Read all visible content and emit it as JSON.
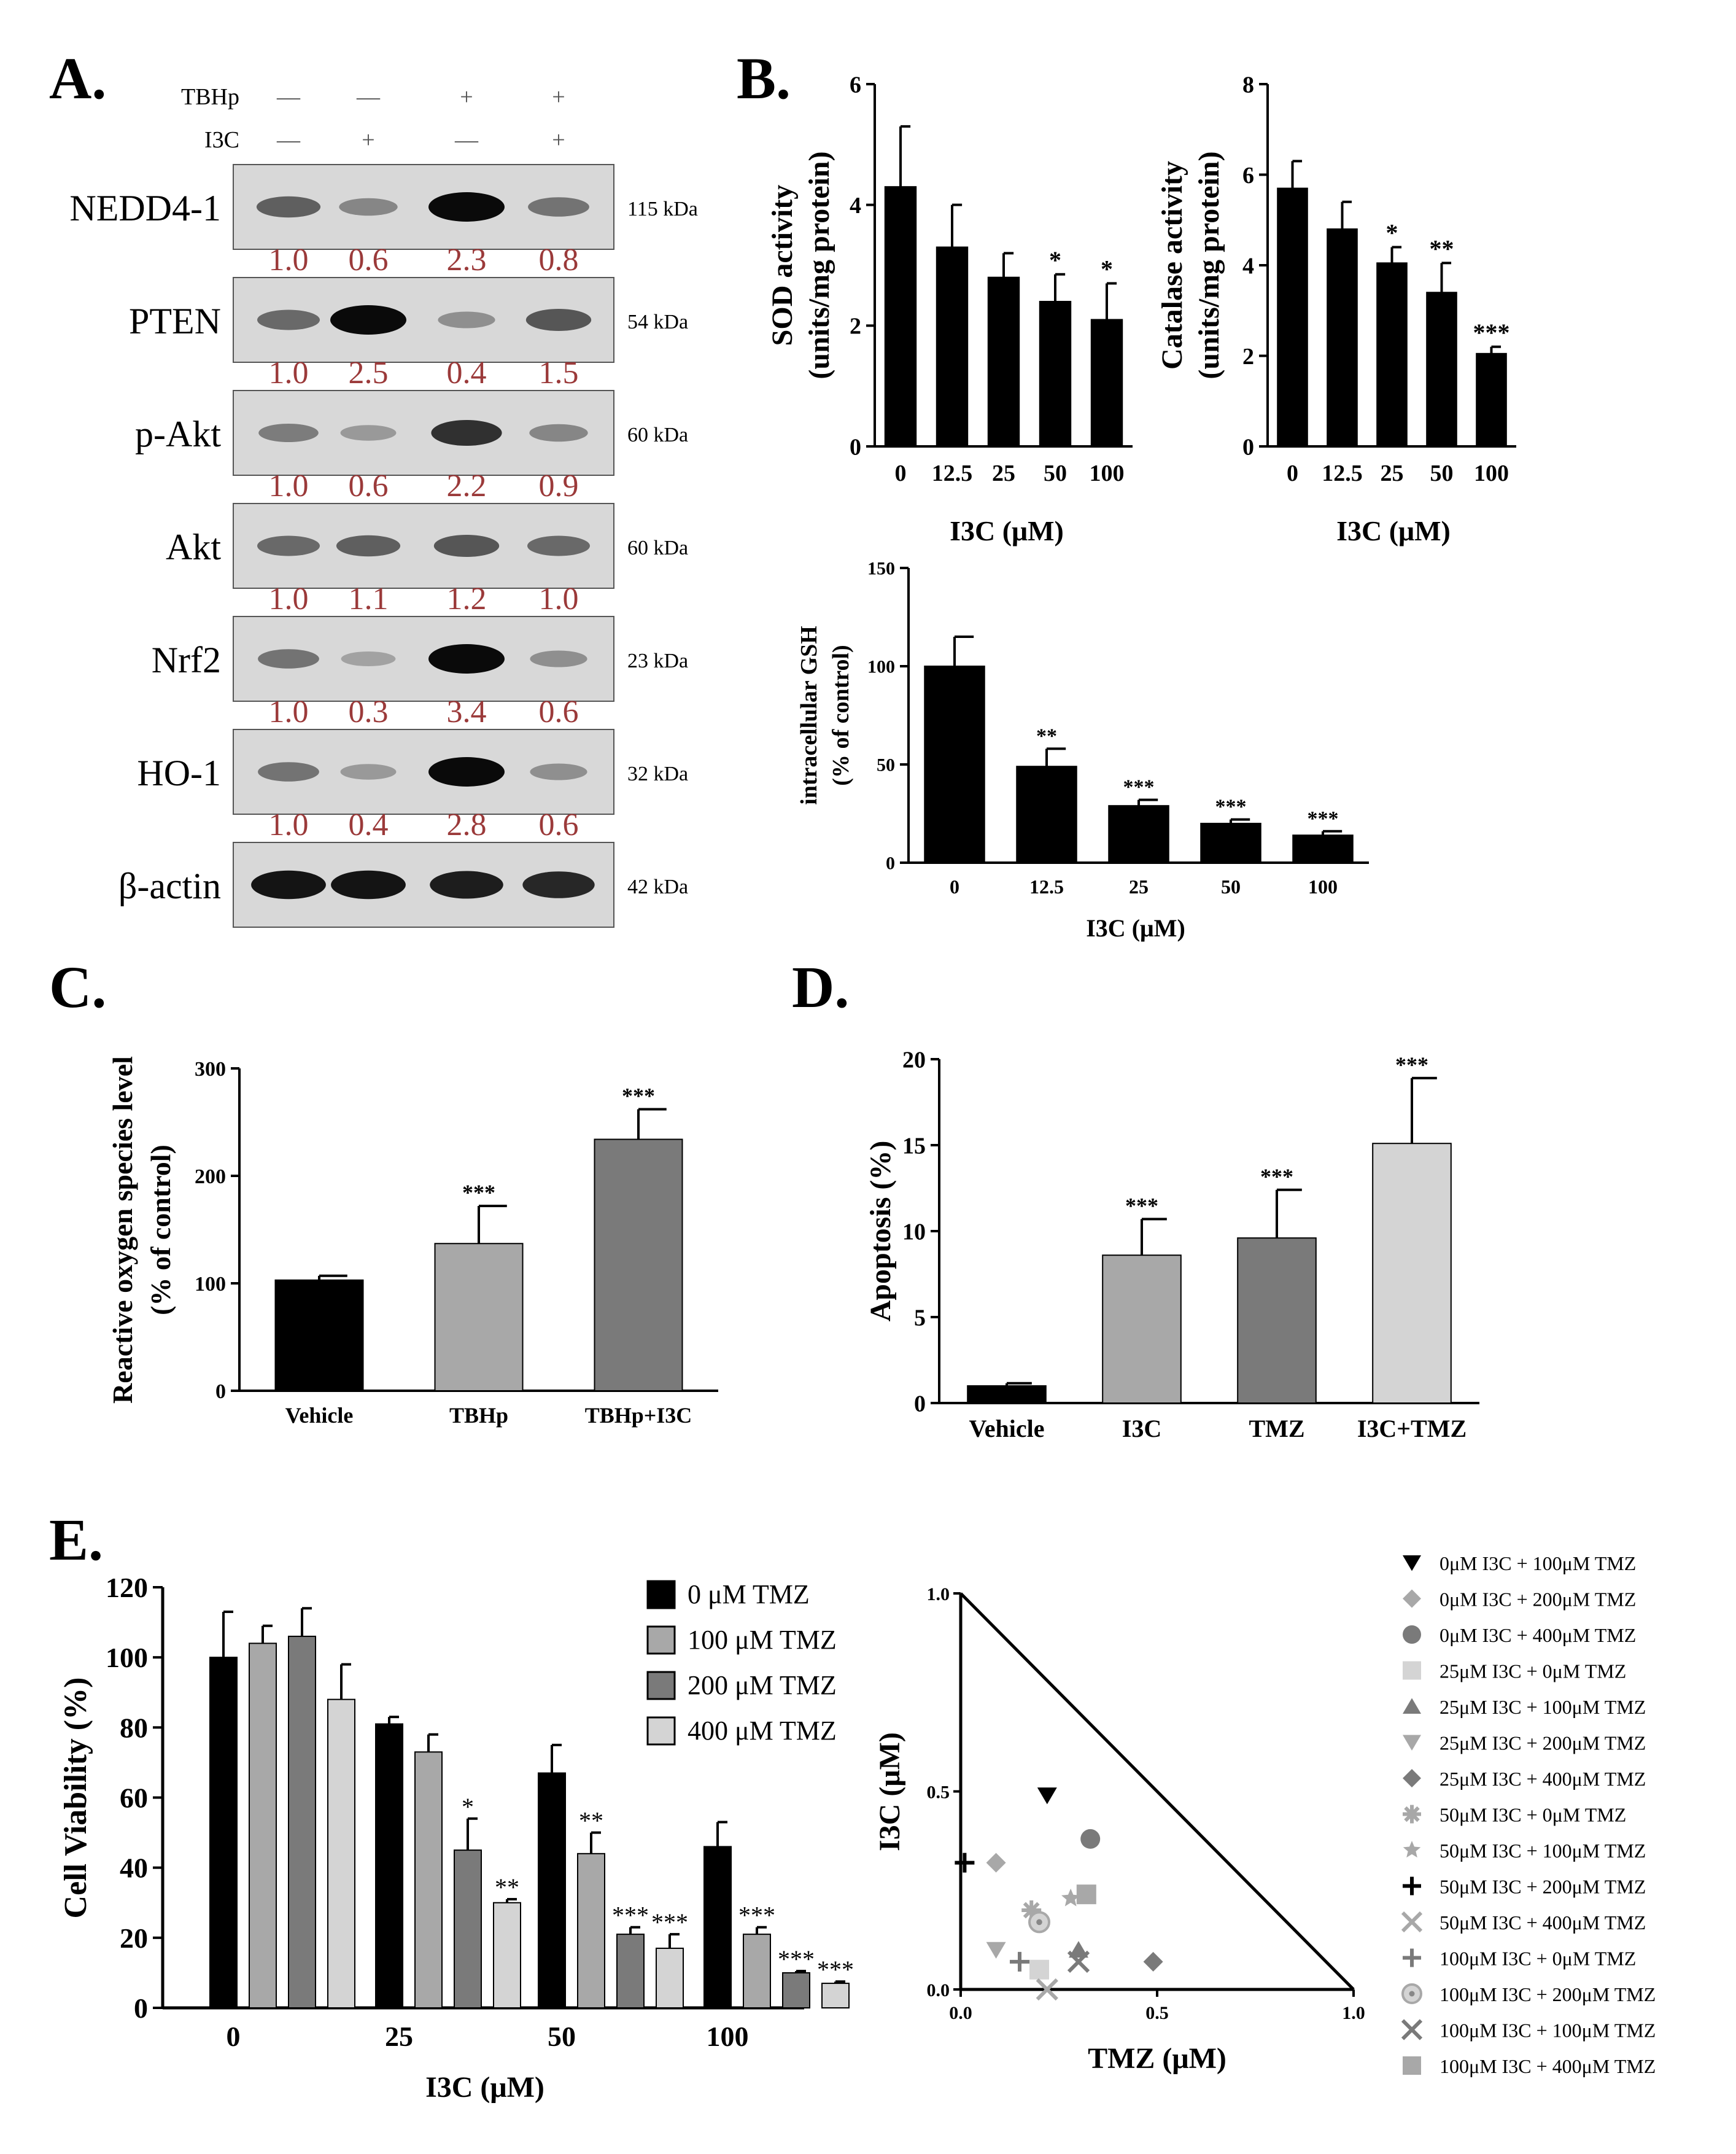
{
  "panels": {
    "A": "A.",
    "B": "B.",
    "C": "C.",
    "D": "D.",
    "E": "E."
  },
  "western_blot": {
    "treatments": [
      {
        "name": "TBHp",
        "values": [
          "—",
          "—",
          "+",
          "+"
        ]
      },
      {
        "name": "I3C",
        "values": [
          "—",
          "+",
          "—",
          "+"
        ]
      }
    ],
    "rows": [
      {
        "label": "NEDD4-1",
        "kda": "115 kDa",
        "ratios": [
          "1.0",
          "0.6",
          "2.3",
          "0.8"
        ],
        "intensity": [
          0.55,
          0.35,
          1.0,
          0.45
        ]
      },
      {
        "label": "PTEN",
        "kda": "54 kDa",
        "ratios": [
          "1.0",
          "2.5",
          "0.4",
          "1.5"
        ],
        "intensity": [
          0.5,
          1.0,
          0.3,
          0.6
        ]
      },
      {
        "label": "p-Akt",
        "kda": "60 kDa",
        "ratios": [
          "1.0",
          "0.6",
          "2.2",
          "0.9"
        ],
        "intensity": [
          0.4,
          0.25,
          0.8,
          0.35
        ]
      },
      {
        "label": "Akt",
        "kda": "60 kDa",
        "ratios": [
          "1.0",
          "1.1",
          "1.2",
          "1.0"
        ],
        "intensity": [
          0.5,
          0.55,
          0.6,
          0.5
        ]
      },
      {
        "label": "Nrf2",
        "kda": "23 kDa",
        "ratios": [
          "1.0",
          "0.3",
          "3.4",
          "0.6"
        ],
        "intensity": [
          0.45,
          0.2,
          1.0,
          0.3
        ]
      },
      {
        "label": "HO-1",
        "kda": "32 kDa",
        "ratios": [
          "1.0",
          "0.4",
          "2.8",
          "0.6"
        ],
        "intensity": [
          0.45,
          0.25,
          1.0,
          0.3
        ]
      },
      {
        "label": "β-actin",
        "kda": "42 kDa",
        "ratios": [],
        "intensity": [
          0.95,
          0.95,
          0.9,
          0.85
        ]
      }
    ],
    "ratio_color": "#9b3a3a"
  },
  "chart_data": [
    {
      "id": "sod",
      "type": "bar",
      "categories": [
        "0",
        "12.5",
        "25",
        "50",
        "100"
      ],
      "values": [
        4.3,
        3.3,
        2.8,
        2.4,
        2.1
      ],
      "errors": [
        1.0,
        0.7,
        0.4,
        0.45,
        0.6
      ],
      "sig": [
        "",
        "",
        "",
        "*",
        "*"
      ],
      "ylabel": [
        "SOD activity",
        "(units/mg protein)"
      ],
      "xlabel": "I3C (μM)",
      "ylim": [
        0,
        6
      ],
      "yticks": [
        0,
        2,
        4,
        6
      ],
      "color": "#000000"
    },
    {
      "id": "cat",
      "type": "bar",
      "categories": [
        "0",
        "12.5",
        "25",
        "50",
        "100"
      ],
      "values": [
        5.7,
        4.8,
        4.05,
        3.4,
        2.05
      ],
      "errors": [
        0.6,
        0.6,
        0.35,
        0.65,
        0.15
      ],
      "sig": [
        "",
        "",
        "*",
        "**",
        "***"
      ],
      "ylabel": [
        "Catalase activity",
        "(units/mg protein)"
      ],
      "xlabel": "I3C (μM)",
      "ylim": [
        0,
        8
      ],
      "yticks": [
        0,
        2,
        4,
        6,
        8
      ],
      "color": "#000000"
    },
    {
      "id": "gsh",
      "type": "bar",
      "categories": [
        "0",
        "12.5",
        "25",
        "50",
        "100"
      ],
      "values": [
        100,
        49,
        29,
        20,
        14
      ],
      "errors": [
        15,
        9,
        3,
        2,
        2
      ],
      "sig": [
        "",
        "**",
        "***",
        "***",
        "***"
      ],
      "ylabel": [
        "intracellular GSH",
        "(% of control)"
      ],
      "xlabel": "I3C (μM)",
      "ylim": [
        0,
        150
      ],
      "yticks": [
        0,
        50,
        100,
        150
      ],
      "color": "#000000"
    },
    {
      "id": "ros",
      "type": "bar",
      "categories": [
        "Vehicle",
        "TBHp",
        "TBHp+I3C"
      ],
      "values": [
        103,
        137,
        234
      ],
      "errors": [
        4,
        35,
        28
      ],
      "sig": [
        "",
        "***",
        "***"
      ],
      "colors": [
        "#000000",
        "#a8a8a8",
        "#7a7a7a"
      ],
      "ylabel": [
        "Reactive oxygen species level",
        "(% of control)"
      ],
      "ylim": [
        0,
        300
      ],
      "yticks": [
        0,
        100,
        200,
        300
      ]
    },
    {
      "id": "apop",
      "type": "bar",
      "categories": [
        "Vehicle",
        "I3C",
        "TMZ",
        "I3C+TMZ"
      ],
      "values": [
        1.0,
        8.6,
        9.6,
        15.1
      ],
      "errors": [
        0.15,
        2.1,
        2.8,
        3.8
      ],
      "sig": [
        "",
        "***",
        "***",
        "***"
      ],
      "colors": [
        "#000000",
        "#a8a8a8",
        "#7a7a7a",
        "#d4d4d4"
      ],
      "ylabel": [
        "Apoptosis (%)"
      ],
      "ylim": [
        0,
        20
      ],
      "yticks": [
        0,
        5,
        10,
        15,
        20
      ]
    },
    {
      "id": "via",
      "type": "bar",
      "categories": [
        "0",
        "25",
        "50",
        "100"
      ],
      "series": [
        {
          "name": "0 μM TMZ",
          "values": [
            100,
            81,
            67,
            46
          ],
          "errors": [
            13,
            2,
            8,
            7
          ],
          "sig": [
            "",
            "",
            "",
            ""
          ],
          "color": "#000000"
        },
        {
          "name": "100 μM TMZ",
          "values": [
            104,
            73,
            44,
            21
          ],
          "errors": [
            5,
            5,
            6,
            2
          ],
          "sig": [
            "",
            "",
            "**",
            "***"
          ],
          "color": "#a8a8a8"
        },
        {
          "name": "200 μM TMZ",
          "values": [
            106,
            45,
            21,
            10
          ],
          "errors": [
            8,
            9,
            2,
            0.5
          ],
          "sig": [
            "",
            "*",
            "***",
            "***"
          ],
          "color": "#7a7a7a"
        },
        {
          "name": "400 μM TMZ",
          "values": [
            88,
            30,
            17,
            7
          ],
          "errors": [
            10,
            1,
            4,
            0.5
          ],
          "sig": [
            "",
            "**",
            "***",
            "***"
          ],
          "color": "#d4d4d4"
        }
      ],
      "ylabel": "Cell Viability (%)",
      "xlabel": "I3C (μM)",
      "ylim": [
        0,
        120
      ],
      "yticks": [
        0,
        20,
        40,
        60,
        80,
        100,
        120
      ]
    },
    {
      "id": "iso",
      "type": "scatter",
      "xlabel": "TMZ (μM)",
      "ylabel": "I3C (μM)",
      "xlim": [
        0,
        1
      ],
      "ylim": [
        0,
        1
      ],
      "xticks": [
        "0.0",
        "0.5",
        "1.0"
      ],
      "yticks": [
        "0.0",
        "0.5",
        "1.0"
      ],
      "points": [
        {
          "label": "0μM I3C + 100μM TMZ",
          "shape": "tri-down",
          "color": "#000000",
          "x": 0.22,
          "y": 0.49
        },
        {
          "label": "0μM I3C + 200μM TMZ",
          "shape": "diamond",
          "color": "#a8a8a8",
          "x": 0.09,
          "y": 0.32
        },
        {
          "label": "0μM I3C + 400μM TMZ",
          "shape": "circle",
          "color": "#7a7a7a",
          "x": 0.33,
          "y": 0.38
        },
        {
          "label": "25μM I3C + 0μM TMZ",
          "shape": "square",
          "color": "#d4d4d4",
          "x": 0.2,
          "y": 0.05
        },
        {
          "label": "25μM I3C + 100μM TMZ",
          "shape": "tri-up",
          "color": "#7a7a7a",
          "x": 0.3,
          "y": 0.1
        },
        {
          "label": "25μM I3C + 200μM TMZ",
          "shape": "tri-down",
          "color": "#a8a8a8",
          "x": 0.09,
          "y": 0.1
        },
        {
          "label": "25μM I3C + 400μM TMZ",
          "shape": "diamond",
          "color": "#7a7a7a",
          "x": 0.49,
          "y": 0.07
        },
        {
          "label": "50μM I3C + 0μM TMZ",
          "shape": "asterisk",
          "color": "#a8a8a8",
          "x": 0.18,
          "y": 0.2
        },
        {
          "label": "50μM I3C + 100μM TMZ",
          "shape": "star",
          "color": "#a8a8a8",
          "x": 0.28,
          "y": 0.23
        },
        {
          "label": "50μM I3C + 200μM TMZ",
          "shape": "plus",
          "color": "#000000",
          "x": 0.01,
          "y": 0.32
        },
        {
          "label": "50μM I3C + 400μM TMZ",
          "shape": "x",
          "color": "#a8a8a8",
          "x": 0.22,
          "y": 0.0
        },
        {
          "label": "100μM I3C + 0μM TMZ",
          "shape": "plus",
          "color": "#7a7a7a",
          "x": 0.15,
          "y": 0.07
        },
        {
          "label": "100μM I3C + 200μM TMZ",
          "shape": "dot-circle",
          "color": "#a8a8a8",
          "x": 0.2,
          "y": 0.17
        },
        {
          "label": "100μM I3C + 100μM TMZ",
          "shape": "x",
          "color": "#7a7a7a",
          "x": 0.3,
          "y": 0.07
        },
        {
          "label": "100μM I3C + 400μM TMZ",
          "shape": "square",
          "color": "#a8a8a8",
          "x": 0.32,
          "y": 0.24
        }
      ]
    }
  ]
}
